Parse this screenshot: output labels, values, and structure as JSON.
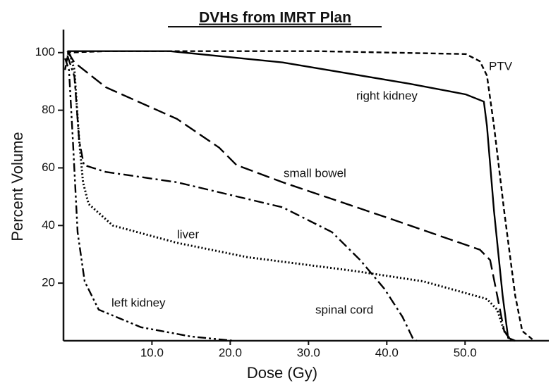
{
  "chart_data": {
    "type": "line",
    "title": "DVHs from IMRT Plan",
    "xlabel": "Dose (Gy)",
    "ylabel": "Percent Volume",
    "xlim": [
      -1.3,
      60.7
    ],
    "ylim": [
      0,
      108
    ],
    "xticks": [
      {
        "value": 10,
        "label": "10.0"
      },
      {
        "value": 20,
        "label": "20.0"
      },
      {
        "value": 30,
        "label": "30.0"
      },
      {
        "value": 40,
        "label": "40.0"
      },
      {
        "value": 50,
        "label": "50.0"
      }
    ],
    "yticks": [
      20,
      40,
      60,
      80,
      100
    ],
    "grid": false,
    "series": [
      {
        "name": "PTV",
        "color": "#000000",
        "dash": "dashed",
        "x": [
          -1.1,
          -0.7,
          4.1,
          31.2,
          50.1,
          51.9,
          52.8,
          53.7,
          55,
          56.4,
          57.3,
          58.6
        ],
        "values": [
          94,
          100,
          100.5,
          100.5,
          99.5,
          97,
          92,
          74.5,
          45,
          15.7,
          3.4,
          0.5
        ]
      },
      {
        "name": "right kidney",
        "color": "#000000",
        "dash": "solid",
        "x": [
          -0.8,
          12.3,
          26.7,
          42.9,
          50.1,
          52.4,
          52.8,
          53.7,
          54.8,
          55.5,
          56.4
        ],
        "values": [
          100.5,
          100.5,
          96.6,
          89.2,
          85.5,
          83,
          74.5,
          45,
          15.7,
          1,
          0
        ]
      },
      {
        "name": "small bowel",
        "color": "#000000",
        "dash": "long-dash",
        "x": [
          -0.8,
          0.1,
          4.1,
          13.2,
          18.6,
          20.8,
          26.7,
          40.2,
          51.9,
          53.2,
          54.1,
          55,
          55.9
        ],
        "values": [
          100.5,
          96.6,
          88,
          77,
          67,
          61,
          55,
          42.6,
          31.6,
          28,
          15.7,
          3.4,
          0
        ]
      },
      {
        "name": "liver",
        "color": "#000000",
        "dash": "dotted",
        "x": [
          -0.6,
          0.1,
          0.7,
          1.2,
          1.9,
          5,
          13.2,
          22.2,
          35.7,
          44.7,
          52.8,
          54.1,
          55,
          55.9
        ],
        "values": [
          100.5,
          94,
          69.6,
          55,
          47.5,
          40,
          34,
          29,
          24.3,
          20.6,
          14.5,
          10.8,
          3.4,
          0
        ]
      },
      {
        "name": "left kidney",
        "color": "#000000",
        "dash": "dash-dot-dot",
        "x": [
          -1.1,
          -0.6,
          -0.1,
          0.5,
          1.4,
          3.2,
          8.6,
          14.95,
          20.4
        ],
        "values": [
          98,
          94,
          69.6,
          37.7,
          20.6,
          10.8,
          4.7,
          1.5,
          0
        ]
      },
      {
        "name": "spinal cord",
        "color": "#000000",
        "dash": "dash-dot",
        "x": [
          -0.8,
          0.1,
          0.7,
          1.3,
          4.1,
          13.2,
          26.7,
          33,
          36.6,
          39.7,
          42,
          43.3,
          43.8
        ],
        "values": [
          99,
          91.7,
          69.6,
          61,
          58.6,
          55,
          46.3,
          37.7,
          28,
          18,
          8.3,
          1,
          0
        ]
      }
    ]
  }
}
